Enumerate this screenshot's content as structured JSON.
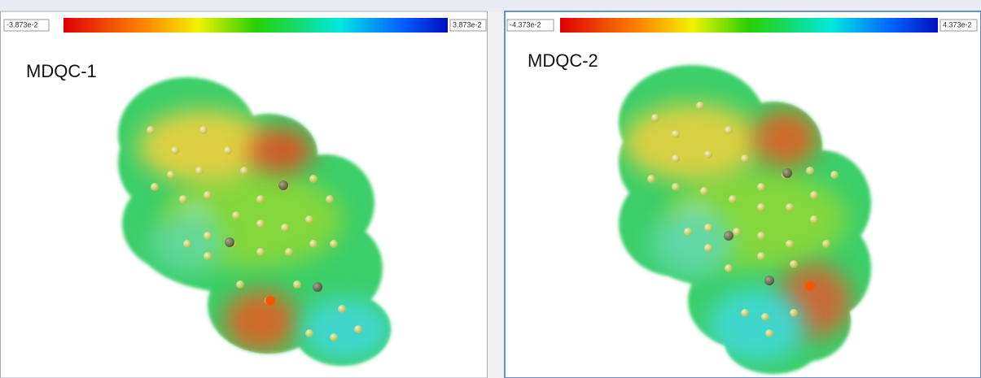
{
  "panels": [
    {
      "title": "MDQC-1",
      "scale_min": "-3.873e-2",
      "scale_max": "3.873e-2"
    },
    {
      "title": "MDQC-2",
      "scale_min": "-4.373e-2",
      "scale_max": "4.373e-2"
    }
  ]
}
